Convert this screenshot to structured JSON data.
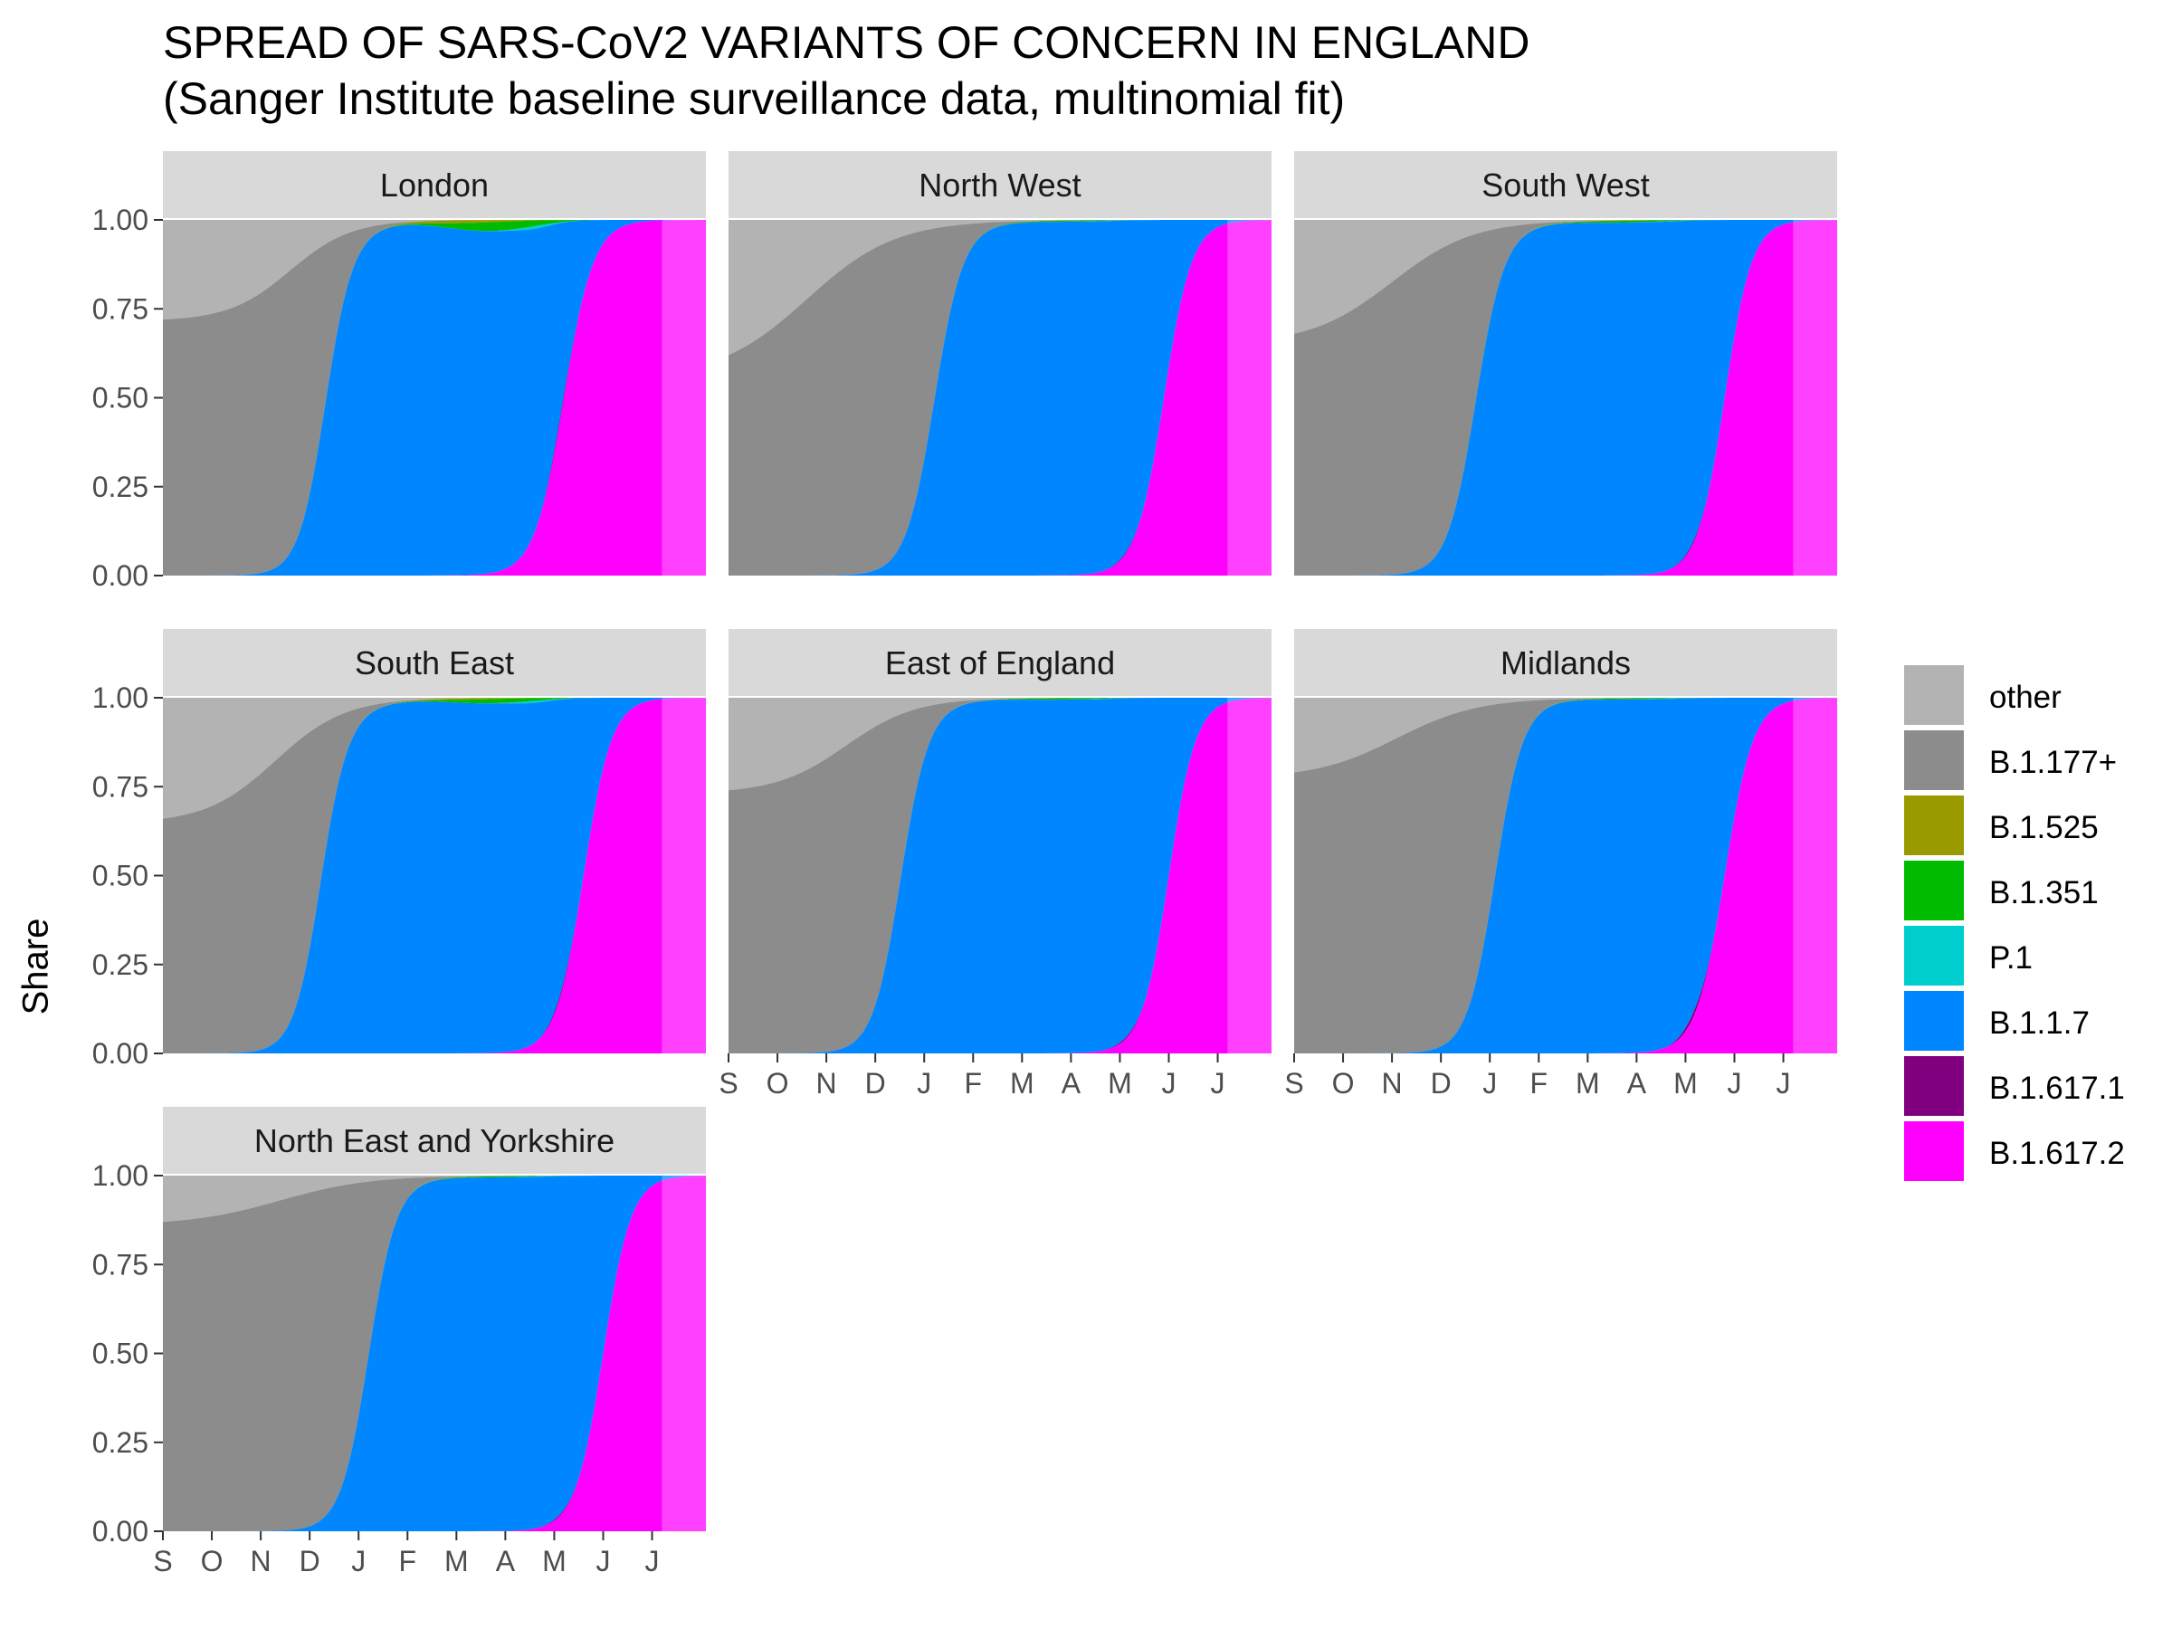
{
  "title": "SPREAD OF SARS-CoV2 VARIANTS OF CONCERN IN ENGLAND",
  "subtitle": "(Sanger Institute baseline surveillance data, multinomial fit)",
  "chart_data": {
    "type": "area",
    "stacking": "fill",
    "ylabel": "Share",
    "xlabel": "",
    "ylim": [
      0,
      1
    ],
    "yticks": [
      "0.00",
      "0.25",
      "0.50",
      "0.75",
      "1.00"
    ],
    "xlim_months": [
      0,
      11.1
    ],
    "xticks": [
      "S",
      "O",
      "N",
      "D",
      "J",
      "F",
      "M",
      "A",
      "M",
      "J",
      "J"
    ],
    "forecast_start_month": 10.2,
    "legend_position": "right",
    "variants": [
      {
        "name": "other",
        "color": "#b3b3b3"
      },
      {
        "name": "B.1.177+",
        "color": "#8c8c8c"
      },
      {
        "name": "B.1.525",
        "color": "#9a9a00"
      },
      {
        "name": "B.1.351",
        "color": "#00bb00"
      },
      {
        "name": "P.1",
        "color": "#00cdcd"
      },
      {
        "name": "B.1.1.7",
        "color": "#0087ff"
      },
      {
        "name": "B.1.617.1",
        "color": "#800080"
      },
      {
        "name": "B.1.617.2",
        "color": "#ff00ff"
      }
    ],
    "curve_model": "cumulative logistic share; value = 1/(1+exp(-slope*(month - midpoint))); other_start = share of 'other' at month 0",
    "panels": [
      {
        "region": "London",
        "other_start": 0.28,
        "b1177_mid": 2.6,
        "b1177_slope": 1.6,
        "alpha_mid": 3.3,
        "alpha_slope": 3.6,
        "delta_mid": 8.2,
        "delta_slope": 3.3,
        "b1351_peak": 0.025,
        "b1525_peak": 0.008,
        "p1_peak": 0.008,
        "kappa_peak": 0.02
      },
      {
        "region": "North West",
        "other_start": 0.38,
        "b1177_mid": 1.6,
        "b1177_slope": 1.1,
        "alpha_mid": 4.2,
        "alpha_slope": 3.4,
        "delta_mid": 8.9,
        "delta_slope": 3.5,
        "b1351_peak": 0.003,
        "b1525_peak": 0.001,
        "p1_peak": 0.001,
        "kappa_peak": 0.004
      },
      {
        "region": "South West",
        "other_start": 0.32,
        "b1177_mid": 2.0,
        "b1177_slope": 1.2,
        "alpha_mid": 3.7,
        "alpha_slope": 3.4,
        "delta_mid": 8.8,
        "delta_slope": 3.6,
        "b1351_peak": 0.005,
        "b1525_peak": 0.002,
        "p1_peak": 0.001,
        "kappa_peak": 0.006
      },
      {
        "region": "South East",
        "other_start": 0.34,
        "b1177_mid": 2.3,
        "b1177_slope": 1.4,
        "alpha_mid": 3.2,
        "alpha_slope": 3.6,
        "delta_mid": 8.6,
        "delta_slope": 3.5,
        "b1351_peak": 0.012,
        "b1525_peak": 0.004,
        "p1_peak": 0.006,
        "kappa_peak": 0.01
      },
      {
        "region": "East of England",
        "other_start": 0.26,
        "b1177_mid": 2.4,
        "b1177_slope": 1.4,
        "alpha_mid": 3.5,
        "alpha_slope": 3.5,
        "delta_mid": 9.0,
        "delta_slope": 3.6,
        "b1351_peak": 0.004,
        "b1525_peak": 0.001,
        "p1_peak": 0.001,
        "kappa_peak": 0.005
      },
      {
        "region": "Midlands",
        "other_start": 0.21,
        "b1177_mid": 2.1,
        "b1177_slope": 1.2,
        "alpha_mid": 4.1,
        "alpha_slope": 3.5,
        "delta_mid": 8.8,
        "delta_slope": 3.4,
        "b1351_peak": 0.003,
        "b1525_peak": 0.001,
        "p1_peak": 0.001,
        "kappa_peak": 0.015
      },
      {
        "region": "North East and Yorkshire",
        "other_start": 0.13,
        "b1177_mid": 2.4,
        "b1177_slope": 1.1,
        "alpha_mid": 4.2,
        "alpha_slope": 3.5,
        "delta_mid": 9.0,
        "delta_slope": 3.5,
        "b1351_peak": 0.003,
        "b1525_peak": 0.001,
        "p1_peak": 0.001,
        "kappa_peak": 0.004
      }
    ]
  }
}
